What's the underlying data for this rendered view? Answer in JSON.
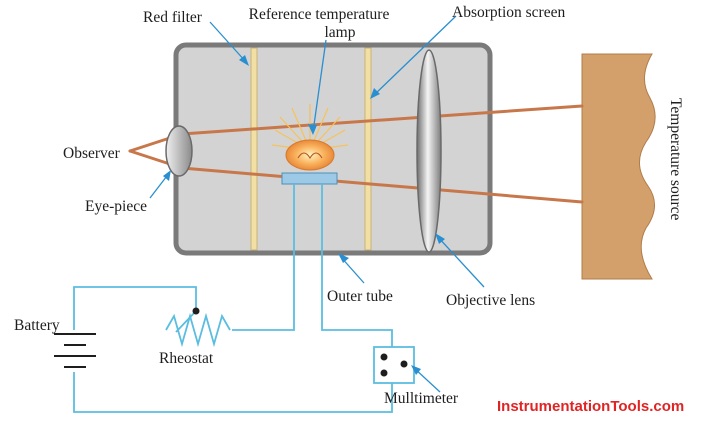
{
  "labels": {
    "red_filter": "Red filter",
    "reference_lamp_line1": "Reference temperature",
    "reference_lamp_line2": "lamp",
    "absorption_screen": "Absorption screen",
    "observer": "Observer",
    "eye_piece": "Eye-piece",
    "temperature_source": "Temperature source",
    "outer_tube": "Outer tube",
    "objective_lens": "Objective lens",
    "battery": "Battery",
    "rheostat": "Rheostat",
    "multimeter": "Mulltimeter"
  },
  "watermark": "InstrumentationTools.com",
  "colors": {
    "tube_fill": "#d3d3d3",
    "tube_border": "#7a7a7a",
    "ray": "#c8774a",
    "wire": "#5bbde0",
    "leader": "#2a8fd0",
    "filter": "#f1dfa3",
    "source": "#d3a06b",
    "lamp_glow": "#f7a24a",
    "watermark": "#e02424"
  }
}
